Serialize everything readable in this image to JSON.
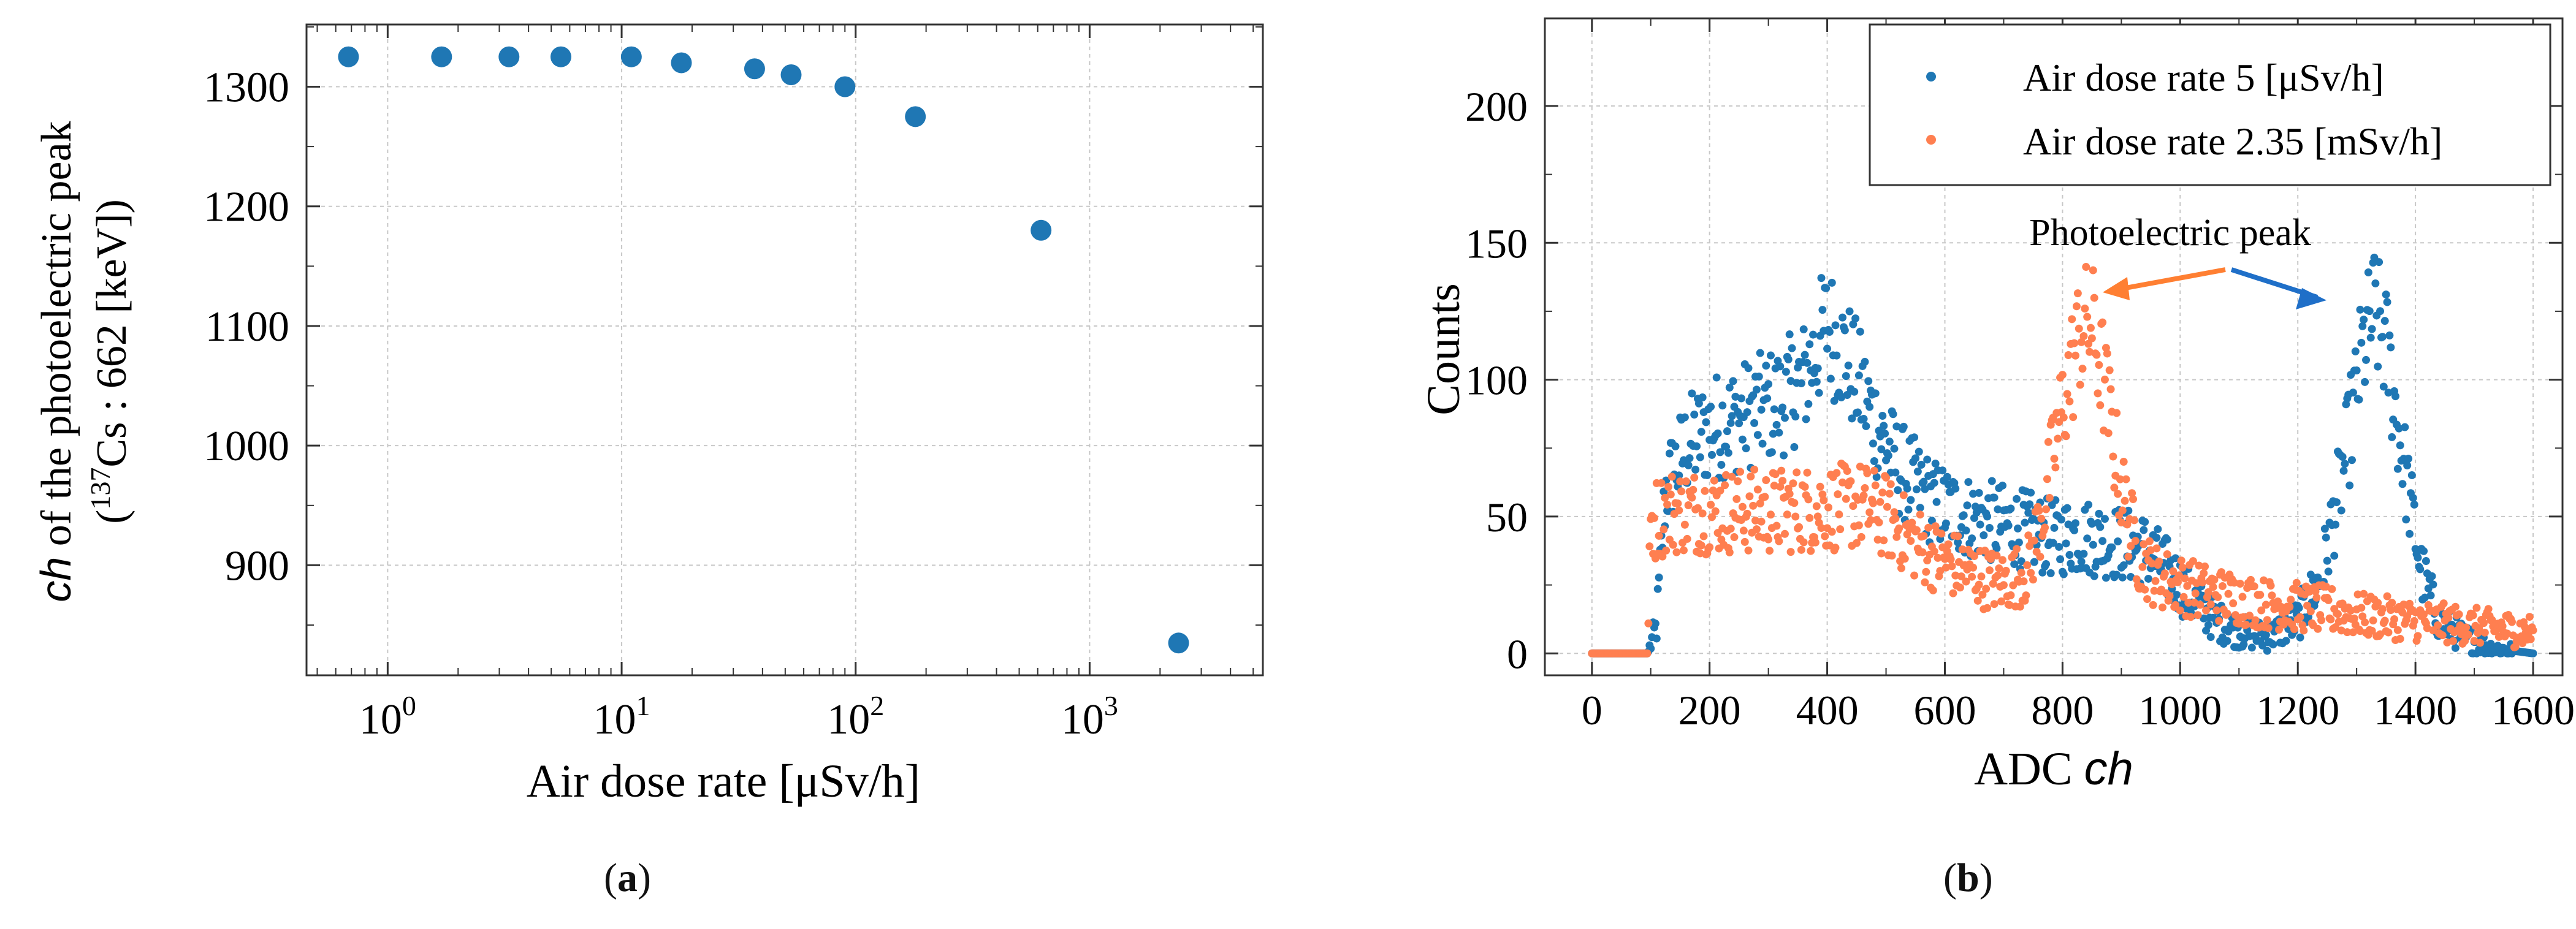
{
  "captions": {
    "a_open": "(",
    "a_letter": "a",
    "a_close": ")",
    "b_open": "(",
    "b_letter": "b",
    "b_close": ")"
  },
  "colors": {
    "blue": "#1f77b4",
    "orange": "#ff7f50",
    "grid": "#c8c8c8",
    "axis": "#333333"
  },
  "chart_data": [
    {
      "id": "a",
      "type": "scatter",
      "xscale": "log",
      "title": "",
      "xlabel": "Air dose rate [μSv/h]",
      "ylabel_line1": "ch of the photoelectric peak",
      "ylabel_line1_italic": "ch",
      "ylabel_line1_rest": " of the photoelectric peak",
      "ylabel_line2_open": "(",
      "ylabel_line2_sup": "137",
      "ylabel_line2_rest": "Cs : 662 [keV])",
      "xlim": [
        0.45,
        5500
      ],
      "ylim": [
        808,
        1352
      ],
      "xticks": [
        {
          "value": 1,
          "base": "10",
          "exp": "0"
        },
        {
          "value": 10,
          "base": "10",
          "exp": "1"
        },
        {
          "value": 100,
          "base": "10",
          "exp": "2"
        },
        {
          "value": 1000,
          "base": "10",
          "exp": "3"
        }
      ],
      "yticks": [
        900,
        1000,
        1100,
        1200,
        1300
      ],
      "grid": true,
      "marker_color": "#1f77b4",
      "x": [
        0.68,
        1.7,
        3.3,
        5.5,
        11,
        18,
        37,
        53,
        90,
        180,
        620,
        2400
      ],
      "y": [
        1325,
        1325,
        1325,
        1325,
        1325,
        1320,
        1315,
        1310,
        1300,
        1275,
        1180,
        835
      ]
    },
    {
      "id": "b",
      "type": "scatter",
      "title": "",
      "xlabel": "ADC ch",
      "xlabel_plain": "ADC ",
      "xlabel_italic": "ch",
      "ylabel": "Counts",
      "xlim": [
        -80,
        1650
      ],
      "ylim": [
        -8,
        232
      ],
      "xticks": [
        0,
        200,
        400,
        600,
        800,
        1000,
        1200,
        1400,
        1600
      ],
      "yticks": [
        0,
        50,
        100,
        150,
        200
      ],
      "grid": true,
      "legend_position": "top-right",
      "annotation": "Photoelectric peak",
      "series": [
        {
          "name": "Air dose rate 5 [μSv/h]",
          "color": "#1f77b4",
          "profile": [
            [
              0,
              0
            ],
            [
              95,
              0
            ],
            [
              110,
              10
            ],
            [
              125,
              60
            ],
            [
              160,
              75
            ],
            [
              200,
              82
            ],
            [
              260,
              87
            ],
            [
              320,
              92
            ],
            [
              360,
              100
            ],
            [
              400,
              120
            ],
            [
              440,
              105
            ],
            [
              480,
              85
            ],
            [
              520,
              68
            ],
            [
              580,
              55
            ],
            [
              640,
              50
            ],
            [
              700,
              47
            ],
            [
              740,
              45
            ],
            [
              780,
              42
            ],
            [
              820,
              43
            ],
            [
              860,
              42
            ],
            [
              900,
              40
            ],
            [
              940,
              38
            ],
            [
              980,
              30
            ],
            [
              1020,
              20
            ],
            [
              1060,
              12
            ],
            [
              1100,
              8
            ],
            [
              1150,
              6
            ],
            [
              1200,
              12
            ],
            [
              1240,
              28
            ],
            [
              1280,
              70
            ],
            [
              1310,
              110
            ],
            [
              1330,
              125
            ],
            [
              1350,
              112
            ],
            [
              1380,
              70
            ],
            [
              1410,
              30
            ],
            [
              1440,
              12
            ],
            [
              1480,
              6
            ],
            [
              1530,
              2
            ],
            [
              1600,
              0
            ]
          ]
        },
        {
          "name": "Air dose rate 2.35 [mSv/h]",
          "color": "#ff7f50",
          "profile": [
            [
              0,
              0
            ],
            [
              95,
              0
            ],
            [
              100,
              48
            ],
            [
              130,
              52
            ],
            [
              200,
              52
            ],
            [
              300,
              52
            ],
            [
              400,
              53
            ],
            [
              460,
              54
            ],
            [
              500,
              50
            ],
            [
              540,
              42
            ],
            [
              580,
              36
            ],
            [
              620,
              32
            ],
            [
              660,
              28
            ],
            [
              700,
              26
            ],
            [
              740,
              30
            ],
            [
              770,
              55
            ],
            [
              800,
              90
            ],
            [
              830,
              118
            ],
            [
              850,
              120
            ],
            [
              870,
              100
            ],
            [
              900,
              60
            ],
            [
              930,
              35
            ],
            [
              960,
              28
            ],
            [
              1000,
              25
            ],
            [
              1050,
              22
            ],
            [
              1100,
              20
            ],
            [
              1150,
              18
            ],
            [
              1200,
              17
            ],
            [
              1250,
              16
            ],
            [
              1300,
              14
            ],
            [
              1350,
              13
            ],
            [
              1400,
              12
            ],
            [
              1450,
              11
            ],
            [
              1500,
              10
            ],
            [
              1550,
              9
            ],
            [
              1600,
              8
            ]
          ]
        }
      ]
    }
  ]
}
